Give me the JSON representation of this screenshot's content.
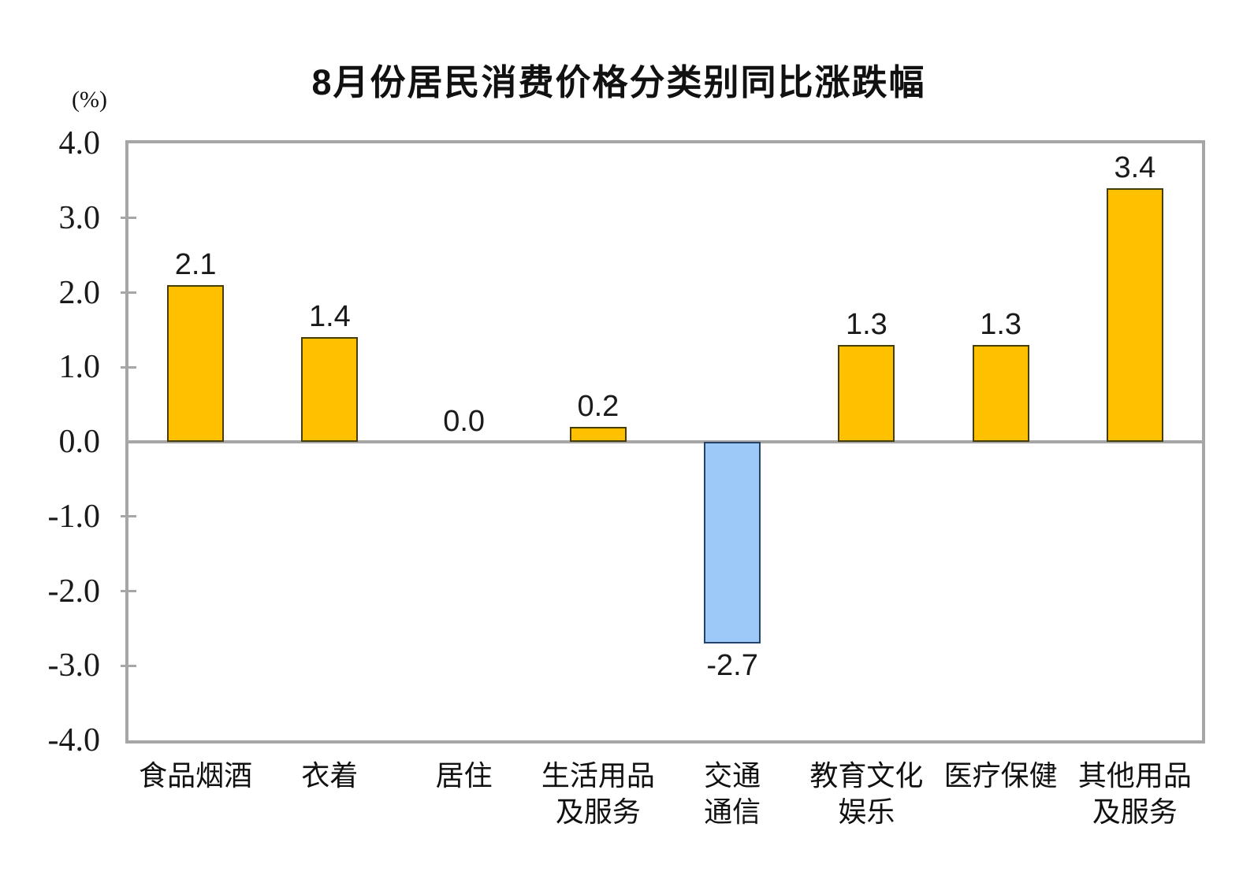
{
  "chart_data": {
    "type": "bar",
    "title": "8月份居民消费价格分类别同比涨跌幅",
    "unit_label": "(%)",
    "categories": [
      {
        "lines": [
          "食品烟酒"
        ]
      },
      {
        "lines": [
          "衣着"
        ]
      },
      {
        "lines": [
          "居住"
        ]
      },
      {
        "lines": [
          "生活用品",
          "及服务"
        ]
      },
      {
        "lines": [
          "交通",
          "通信"
        ]
      },
      {
        "lines": [
          "教育文化",
          "娱乐"
        ]
      },
      {
        "lines": [
          "医疗保健"
        ]
      },
      {
        "lines": [
          "其他用品",
          "及服务"
        ]
      }
    ],
    "values": [
      2.1,
      1.4,
      0.0,
      0.2,
      -2.7,
      1.3,
      1.3,
      3.4
    ],
    "value_labels": [
      "2.1",
      "1.4",
      "0.0",
      "0.2",
      "-2.7",
      "1.3",
      "1.3",
      "3.4"
    ],
    "ylim": [
      -4,
      4
    ],
    "ytick_labels": [
      "4.0",
      "3.0",
      "2.0",
      "1.0",
      "0.0",
      "-1.0",
      "-2.0",
      "-3.0",
      "-4.0"
    ],
    "grid": "off",
    "legend": "none",
    "colors": {
      "positive_fill": "#FFC000",
      "positive_border": "#453c06",
      "negative_fill": "#9DC9F8",
      "negative_border": "#24436B",
      "axis": "#A6A6A6",
      "text": "#111111"
    }
  }
}
